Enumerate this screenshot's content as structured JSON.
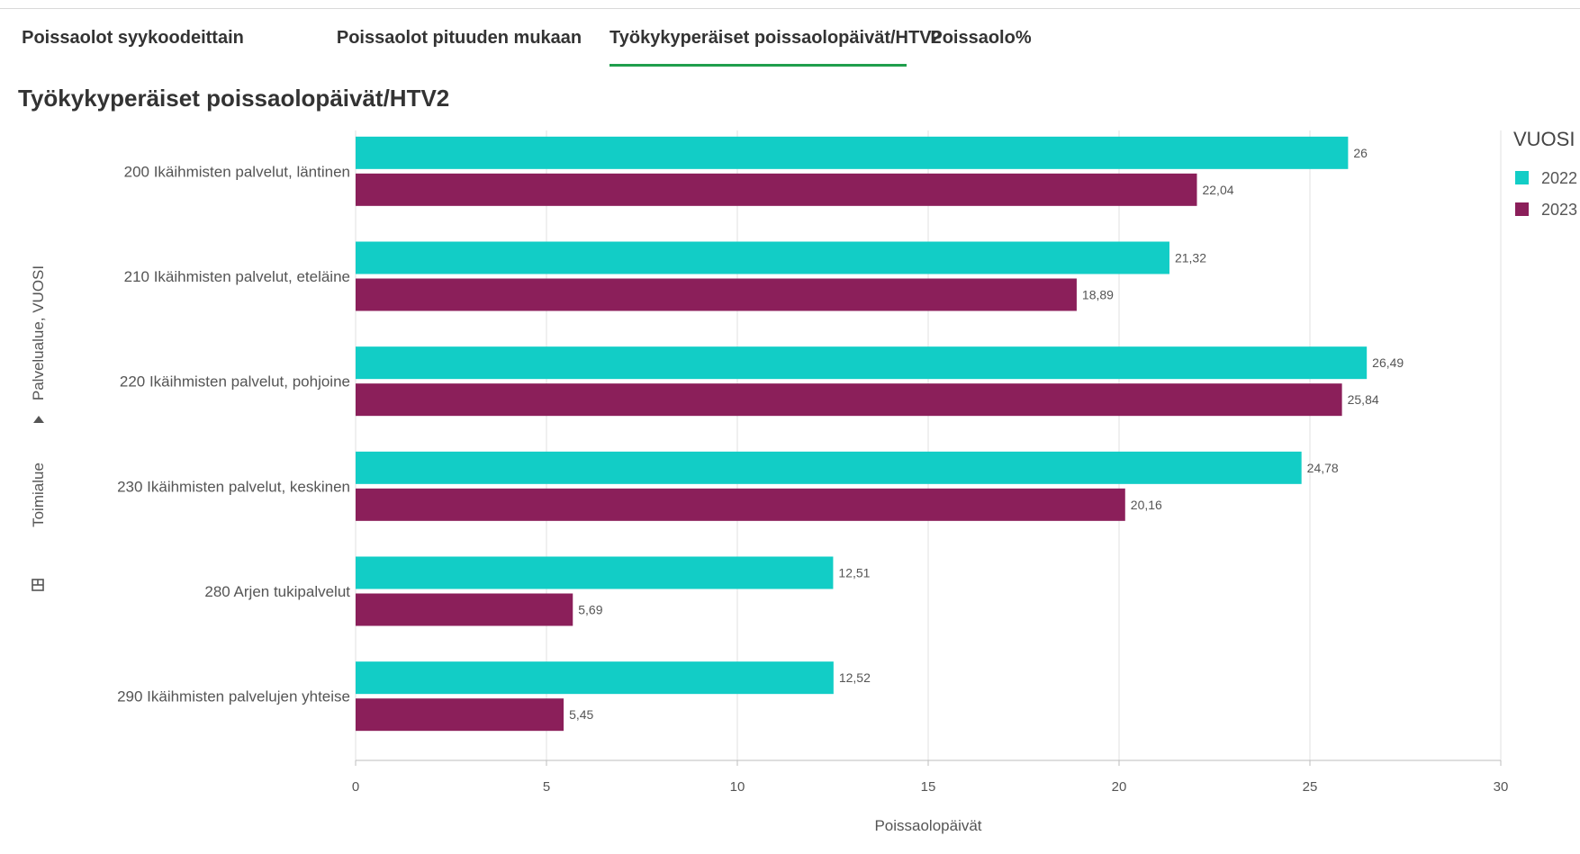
{
  "tabs": [
    {
      "label": "Poissaolot syykoodeittain",
      "active": false
    },
    {
      "label": "Poissaolot pituuden mukaan",
      "active": false
    },
    {
      "label": "Työkykyperäiset poissaolopäivät/HTV2",
      "active": true
    },
    {
      "label": "Poissaolo%",
      "active": false
    }
  ],
  "accent_color": "#1f9e4c",
  "chart_data": {
    "type": "bar",
    "orientation": "horizontal",
    "title": "Työkykyperäiset poissaolopäivät/HTV2",
    "categories": [
      "200 Ikäihmisten palvelut, läntinen",
      "210 Ikäihmisten palvelut, eteläine",
      "220 Ikäihmisten palvelut, pohjoine",
      "230 Ikäihmisten palvelut, keskinen",
      "280 Arjen tukipalvelut",
      "290 Ikäihmisten palvelujen yhteise"
    ],
    "series": [
      {
        "name": "2022",
        "color": "#12cdc6",
        "values": [
          26,
          21.32,
          26.49,
          24.78,
          12.51,
          12.52
        ],
        "labels": [
          "26",
          "21,32",
          "26,49",
          "24,78",
          "12,51",
          "12,52"
        ]
      },
      {
        "name": "2023",
        "color": "#8b1f5a",
        "values": [
          22.04,
          18.89,
          25.84,
          20.16,
          5.69,
          5.45
        ],
        "labels": [
          "22,04",
          "18,89",
          "25,84",
          "20,16",
          "5,69",
          "5,45"
        ]
      }
    ],
    "xlabel": "Poissaolopäivät",
    "ylabel": "Palvelualue, VUOSI",
    "dimension_drill": "Toimialue",
    "xlim": [
      0,
      30
    ],
    "xticks": [
      0,
      5,
      10,
      15,
      20,
      25,
      30
    ],
    "grid": true,
    "legend": {
      "title": "VUOSI",
      "position": "right"
    }
  }
}
